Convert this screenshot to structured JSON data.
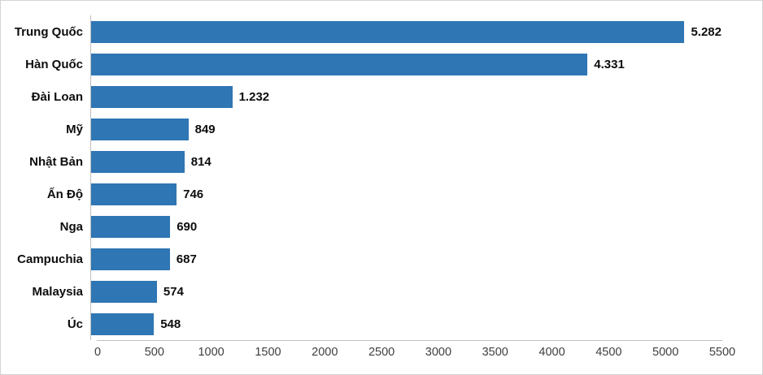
{
  "chart_data": {
    "type": "bar",
    "orientation": "horizontal",
    "title": "",
    "xlabel": "",
    "ylabel": "",
    "categories": [
      "Trung Quốc",
      "Hàn Quốc",
      "Đài Loan",
      "Mỹ",
      "Nhật Bản",
      "Ấn Độ",
      "Nga",
      "Campuchia",
      "Malaysia",
      "Úc"
    ],
    "values": [
      5282,
      4331,
      1232,
      849,
      814,
      746,
      690,
      687,
      574,
      548
    ],
    "value_labels": [
      "5.282",
      "4.331",
      "1.232",
      "849",
      "814",
      "746",
      "690",
      "687",
      "574",
      "548"
    ],
    "xlim": [
      0,
      5500
    ],
    "x_ticks": [
      0,
      500,
      1000,
      1500,
      2000,
      2500,
      3000,
      3500,
      4000,
      4500,
      5000,
      5500
    ],
    "x_tick_labels": [
      "0",
      "500",
      "1000",
      "1500",
      "2000",
      "2500",
      "3000",
      "3500",
      "4000",
      "4500",
      "5000",
      "5500"
    ],
    "grid": false,
    "legend": false,
    "bar_color": "#2f76b4",
    "axis_line_color": "#bfbfbf",
    "data_label_color": "#0d0d0d",
    "tick_label_color": "#3f3f3f",
    "frame_color": "#d3d3d3"
  }
}
